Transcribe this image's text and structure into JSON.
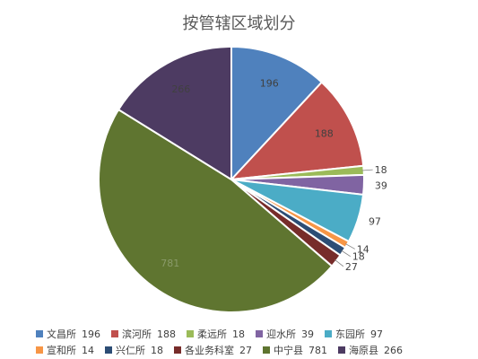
{
  "chart_data": {
    "type": "pie",
    "title": "按管辖区域划分",
    "legend_position": "bottom",
    "slices": [
      {
        "name": "文昌所",
        "value": 196,
        "color": "#4f81bd"
      },
      {
        "name": "滨河所",
        "value": 188,
        "color": "#c0504d"
      },
      {
        "name": "柔远所",
        "value": 18,
        "color": "#9bbb59"
      },
      {
        "name": "迎水所",
        "value": 39,
        "color": "#8064a2"
      },
      {
        "name": "东园所",
        "value": 97,
        "color": "#4bacc6"
      },
      {
        "name": "宣和所",
        "value": 14,
        "color": "#f79646"
      },
      {
        "name": "兴仁所",
        "value": 18,
        "color": "#2c4d75"
      },
      {
        "name": "各业务科室",
        "value": 27,
        "color": "#772c2a"
      },
      {
        "name": "中宁县",
        "value": 781,
        "color": "#5f7530"
      },
      {
        "name": "海原县",
        "value": 266,
        "color": "#4d3b62"
      }
    ]
  }
}
